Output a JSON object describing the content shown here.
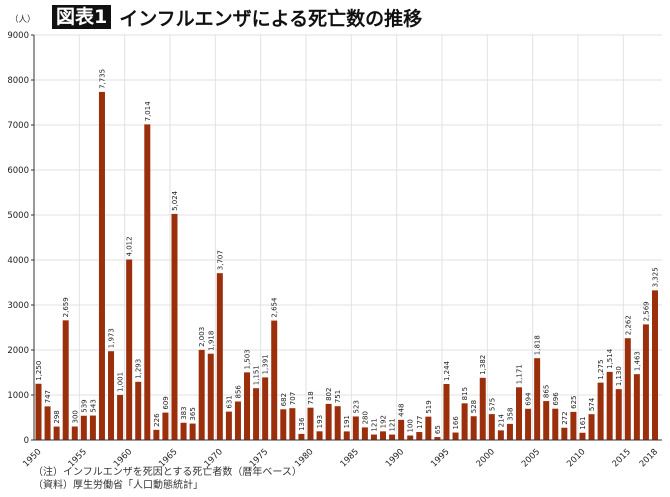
{
  "header": {
    "figure_label": "図表1",
    "title": "インフルエンザによる死亡数の推移"
  },
  "notes": {
    "note": "（注）インフルエンザを死因とする死亡者数（暦年ベース）",
    "source": "（資料）厚生労働省「人口動態統計」"
  },
  "chart_data": {
    "type": "bar",
    "title": "インフルエンザによる死亡数の推移",
    "ylabel": "（人）",
    "xlabel": "",
    "ylim": [
      0,
      9000
    ],
    "yticks": [
      0,
      1000,
      2000,
      3000,
      4000,
      5000,
      6000,
      7000,
      8000,
      9000
    ],
    "xtick_labels": [
      "1950",
      "1955",
      "1960",
      "1965",
      "1970",
      "1975",
      "1980",
      "1985",
      "1990",
      "1995",
      "2000",
      "2005",
      "2010",
      "2015",
      "2018"
    ],
    "grid": true,
    "bar_color": "#9b2f0c",
    "categories": [
      1950,
      1951,
      1952,
      1953,
      1954,
      1955,
      1956,
      1957,
      1958,
      1959,
      1960,
      1961,
      1962,
      1963,
      1964,
      1965,
      1966,
      1967,
      1968,
      1969,
      1970,
      1971,
      1972,
      1973,
      1974,
      1975,
      1976,
      1977,
      1978,
      1979,
      1980,
      1981,
      1982,
      1983,
      1984,
      1985,
      1986,
      1987,
      1988,
      1989,
      1990,
      1991,
      1992,
      1993,
      1994,
      1995,
      1996,
      1997,
      1998,
      1999,
      2000,
      2001,
      2002,
      2003,
      2004,
      2005,
      2006,
      2007,
      2008,
      2009,
      2010,
      2011,
      2012,
      2013,
      2014,
      2015,
      2016,
      2017,
      2018
    ],
    "values": [
      1250,
      747,
      298,
      2659,
      300,
      539,
      543,
      7735,
      1973,
      1001,
      4012,
      1293,
      7014,
      226,
      609,
      5024,
      383,
      365,
      2003,
      1918,
      3707,
      631,
      856,
      1503,
      1151,
      1391,
      2654,
      682,
      707,
      136,
      718,
      193,
      802,
      751,
      191,
      523,
      280,
      121,
      192,
      121,
      448,
      100,
      177,
      519,
      65,
      1244,
      166,
      815,
      528,
      1382,
      575,
      214,
      358,
      1171,
      694,
      1818,
      865,
      696,
      272,
      625,
      161,
      574,
      1275,
      1514,
      1130,
      2262,
      1463,
      2569,
      3325
    ]
  }
}
